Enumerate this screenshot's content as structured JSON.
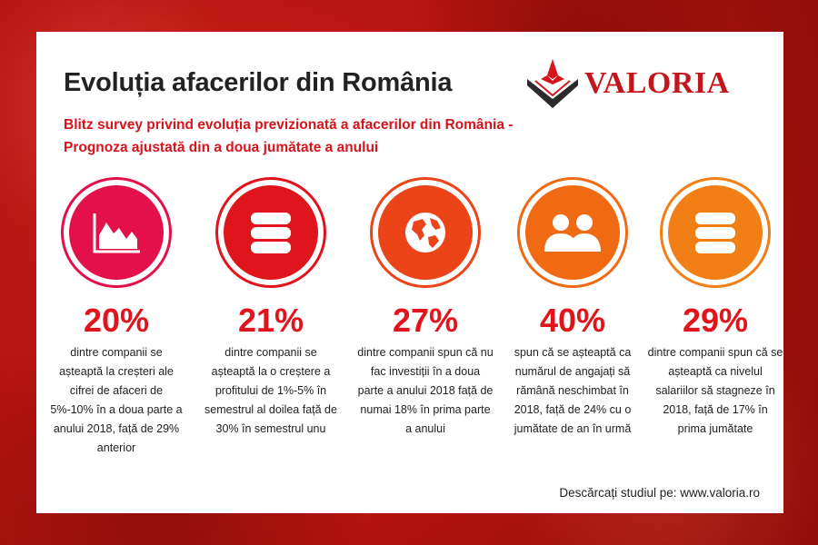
{
  "title": "Evoluția afacerilor din România",
  "subtitle": "Blitz survey privind evoluția previzionată a afacerilor din România - Prognoza ajustată din a doua jumătate a anului",
  "logo": {
    "text": "VALORIA",
    "color": "#c3151c"
  },
  "stats": [
    {
      "icon": "area-chart-icon",
      "color": "#e3104a",
      "percent": "20%",
      "text": "dintre companii se așteaptă la creșteri ale cifrei de afaceri de 5%-10% în a doua parte a anului 2018, față de 29% anterior"
    },
    {
      "icon": "database-icon",
      "color": "#e0141c",
      "percent": "21%",
      "text": "dintre companii se așteaptă la o creștere a profitului de 1%-5% în semestrul al doilea față de 30% în semestrul unu"
    },
    {
      "icon": "globe-icon",
      "color": "#ea4418",
      "percent": "27%",
      "text": "dintre companii spun că nu fac investiții în a doua parte a anului 2018 față de numai 18% în prima parte a anului"
    },
    {
      "icon": "users-icon",
      "color": "#f06a14",
      "percent": "40%",
      "text": "spun că se așteaptă ca numărul de angajați să rămână neschimbat în 2018, față de 24% cu o jumătate de an în urmă"
    },
    {
      "icon": "database-icon",
      "color": "#f27f16",
      "percent": "29%",
      "text": "dintre companii spun că se așteaptă ca nivelul salariilor să stagneze în 2018, față de 17% în prima jumătate"
    }
  ],
  "footer": "Descărcați studiul pe: www.valoria.ro"
}
